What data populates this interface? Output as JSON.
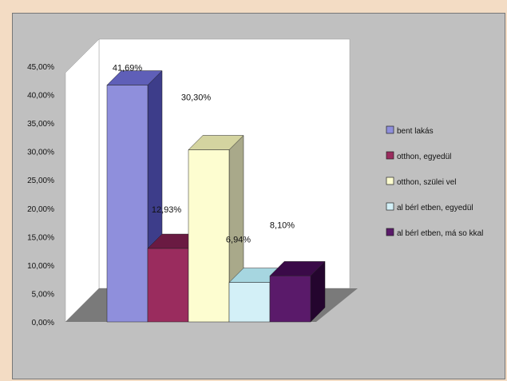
{
  "chart_data": {
    "type": "bar",
    "three_d": true,
    "categories": [
      "bent lakás",
      "otthon, egyedül",
      "otthon, szülei vel",
      "al bérl etben, egyedül",
      "al bérl etben, má so kkal"
    ],
    "values": [
      41.69,
      12.93,
      30.3,
      6.94,
      8.1
    ],
    "data_labels": [
      "41,69%",
      "12,93%",
      "30,30%",
      "6,94%",
      "8,10%"
    ],
    "ylim": [
      0,
      45
    ],
    "yticks": [
      "0,00%",
      "5,00%",
      "10,00%",
      "15,00%",
      "20,00%",
      "25,00%",
      "30,00%",
      "35,00%",
      "40,00%",
      "45,00%"
    ],
    "legend": {
      "position": "right",
      "entries": [
        "bent lakás",
        "otthon, egyedül",
        "otthon, szülei   vel",
        "al bérl etben, egyedül",
        "al bérl etben, má   so kkal"
      ]
    },
    "colors": {
      "front": [
        "#8f8fdc",
        "#9a2c5e",
        "#fdfdd0",
        "#d3f0f7",
        "#5a1a6a"
      ],
      "top": [
        "#5f5fb8",
        "#6a1a42",
        "#d4d4a0",
        "#a6d6e0",
        "#3a0a48"
      ],
      "side": [
        "#3d3d8a",
        "#4a0f2e",
        "#a9a98a",
        "#7ab0bc",
        "#24052e"
      ],
      "wall": "#ffffff",
      "floor": "#7a7a7a",
      "background": "#c0c0c0"
    },
    "title": "",
    "xlabel": "",
    "ylabel": ""
  }
}
